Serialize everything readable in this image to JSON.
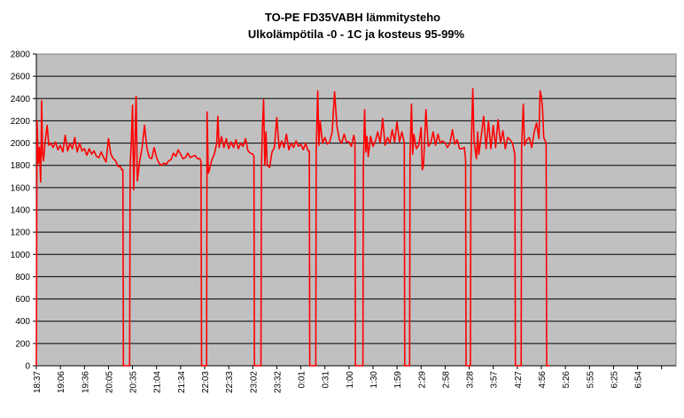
{
  "chart_data": {
    "type": "line",
    "title_lines": [
      "TO-PE FD35VABH lämmitysteho",
      "Ulkolämpötila  -0 - 1C ja kosteus 95-99%"
    ],
    "xlabel": "",
    "ylabel": "",
    "ylim": [
      0,
      2800
    ],
    "y_ticks": [
      "0",
      "200",
      "400",
      "600",
      "800",
      "1000",
      "1200",
      "1400",
      "1600",
      "1800",
      "2000",
      "2200",
      "2400",
      "2600",
      "2800"
    ],
    "x_tick_labels": [
      "18:37",
      "19:06",
      "19:36",
      "20:05",
      "20:35",
      "21:04",
      "21:34",
      "22:03",
      "22:33",
      "23:02",
      "23:32",
      "0:01",
      "0:31",
      "1:00",
      "1:30",
      "1:59",
      "2:29",
      "2:58",
      "3:28",
      "3:57",
      "4:27",
      "4:56",
      "5:26",
      "5:55",
      "6:25",
      "6:54"
    ],
    "x_extent_ticks": 26.6,
    "grid": true,
    "plot_background": "#c0c0c0",
    "line_color": "#ff0000",
    "series": [
      {
        "values": [
          [
            0.0,
            0
          ],
          [
            0.03,
            2200
          ],
          [
            0.08,
            1820
          ],
          [
            0.13,
            1960
          ],
          [
            0.18,
            1650
          ],
          [
            0.22,
            2380
          ],
          [
            0.26,
            1900
          ],
          [
            0.3,
            1840
          ],
          [
            0.36,
            2000
          ],
          [
            0.45,
            2160
          ],
          [
            0.52,
            1980
          ],
          [
            0.6,
            2000
          ],
          [
            0.7,
            1960
          ],
          [
            0.8,
            2010
          ],
          [
            0.9,
            1940
          ],
          [
            1.0,
            1980
          ],
          [
            1.1,
            1920
          ],
          [
            1.2,
            2070
          ],
          [
            1.3,
            1930
          ],
          [
            1.4,
            2000
          ],
          [
            1.5,
            1950
          ],
          [
            1.6,
            2050
          ],
          [
            1.7,
            1920
          ],
          [
            1.8,
            2000
          ],
          [
            1.9,
            1930
          ],
          [
            2.0,
            1950
          ],
          [
            2.1,
            1890
          ],
          [
            2.2,
            1950
          ],
          [
            2.3,
            1900
          ],
          [
            2.4,
            1930
          ],
          [
            2.5,
            1880
          ],
          [
            2.6,
            1870
          ],
          [
            2.7,
            1920
          ],
          [
            2.8,
            1870
          ],
          [
            2.9,
            1830
          ],
          [
            3.0,
            2040
          ],
          [
            3.1,
            1900
          ],
          [
            3.2,
            1860
          ],
          [
            3.3,
            1840
          ],
          [
            3.4,
            1790
          ],
          [
            3.5,
            1790
          ],
          [
            3.55,
            1760
          ],
          [
            3.6,
            1760
          ],
          [
            3.62,
            0
          ],
          [
            3.88,
            0
          ],
          [
            3.9,
            1800
          ],
          [
            3.95,
            2000
          ],
          [
            4.0,
            2340
          ],
          [
            4.05,
            1580
          ],
          [
            4.1,
            2000
          ],
          [
            4.15,
            2420
          ],
          [
            4.2,
            1660
          ],
          [
            4.3,
            1840
          ],
          [
            4.4,
            1960
          ],
          [
            4.5,
            2160
          ],
          [
            4.6,
            1950
          ],
          [
            4.7,
            1870
          ],
          [
            4.8,
            1860
          ],
          [
            4.9,
            1960
          ],
          [
            5.0,
            1870
          ],
          [
            5.1,
            1820
          ],
          [
            5.2,
            1800
          ],
          [
            5.3,
            1820
          ],
          [
            5.4,
            1810
          ],
          [
            5.5,
            1840
          ],
          [
            5.6,
            1850
          ],
          [
            5.7,
            1910
          ],
          [
            5.8,
            1880
          ],
          [
            5.9,
            1940
          ],
          [
            6.0,
            1900
          ],
          [
            6.1,
            1860
          ],
          [
            6.2,
            1870
          ],
          [
            6.3,
            1910
          ],
          [
            6.4,
            1870
          ],
          [
            6.5,
            1880
          ],
          [
            6.6,
            1890
          ],
          [
            6.7,
            1860
          ],
          [
            6.8,
            1860
          ],
          [
            6.85,
            1830
          ],
          [
            6.87,
            0
          ],
          [
            7.08,
            0
          ],
          [
            7.1,
            2280
          ],
          [
            7.15,
            1730
          ],
          [
            7.2,
            1760
          ],
          [
            7.3,
            1850
          ],
          [
            7.4,
            1900
          ],
          [
            7.5,
            2000
          ],
          [
            7.55,
            2240
          ],
          [
            7.6,
            1960
          ],
          [
            7.7,
            2060
          ],
          [
            7.8,
            1960
          ],
          [
            7.9,
            2040
          ],
          [
            8.0,
            1950
          ],
          [
            8.1,
            2010
          ],
          [
            8.2,
            1960
          ],
          [
            8.3,
            2030
          ],
          [
            8.4,
            1950
          ],
          [
            8.5,
            2000
          ],
          [
            8.6,
            1970
          ],
          [
            8.7,
            2040
          ],
          [
            8.8,
            1930
          ],
          [
            8.9,
            1910
          ],
          [
            9.0,
            1900
          ],
          [
            9.05,
            1880
          ],
          [
            9.07,
            0
          ],
          [
            9.34,
            0
          ],
          [
            9.36,
            1790
          ],
          [
            9.4,
            2120
          ],
          [
            9.45,
            2390
          ],
          [
            9.5,
            1800
          ],
          [
            9.55,
            2100
          ],
          [
            9.6,
            1800
          ],
          [
            9.7,
            1780
          ],
          [
            9.8,
            1920
          ],
          [
            9.9,
            1960
          ],
          [
            10.0,
            2230
          ],
          [
            10.1,
            1950
          ],
          [
            10.2,
            2020
          ],
          [
            10.3,
            1960
          ],
          [
            10.4,
            2080
          ],
          [
            10.5,
            1940
          ],
          [
            10.6,
            2000
          ],
          [
            10.7,
            1960
          ],
          [
            10.8,
            2020
          ],
          [
            10.9,
            1970
          ],
          [
            11.0,
            1990
          ],
          [
            11.1,
            1940
          ],
          [
            11.2,
            2000
          ],
          [
            11.3,
            1930
          ],
          [
            11.35,
            1930
          ],
          [
            11.37,
            0
          ],
          [
            11.62,
            0
          ],
          [
            11.64,
            1930
          ],
          [
            11.7,
            2470
          ],
          [
            11.75,
            1980
          ],
          [
            11.8,
            2200
          ],
          [
            11.9,
            2000
          ],
          [
            12.0,
            2050
          ],
          [
            12.1,
            1990
          ],
          [
            12.2,
            2010
          ],
          [
            12.3,
            2100
          ],
          [
            12.4,
            2460
          ],
          [
            12.5,
            2150
          ],
          [
            12.6,
            2030
          ],
          [
            12.7,
            2000
          ],
          [
            12.8,
            2080
          ],
          [
            12.9,
            2010
          ],
          [
            13.0,
            2010
          ],
          [
            13.1,
            1970
          ],
          [
            13.2,
            2070
          ],
          [
            13.25,
            2020
          ],
          [
            13.27,
            0
          ],
          [
            13.58,
            0
          ],
          [
            13.6,
            1790
          ],
          [
            13.65,
            2300
          ],
          [
            13.7,
            1920
          ],
          [
            13.75,
            2060
          ],
          [
            13.8,
            1880
          ],
          [
            13.9,
            2060
          ],
          [
            14.0,
            1970
          ],
          [
            14.1,
            2020
          ],
          [
            14.2,
            2100
          ],
          [
            14.3,
            2000
          ],
          [
            14.4,
            2220
          ],
          [
            14.5,
            1980
          ],
          [
            14.6,
            2050
          ],
          [
            14.7,
            2000
          ],
          [
            14.8,
            2120
          ],
          [
            14.9,
            2010
          ],
          [
            15.0,
            2190
          ],
          [
            15.1,
            2010
          ],
          [
            15.2,
            2100
          ],
          [
            15.3,
            2000
          ],
          [
            15.32,
            0
          ],
          [
            15.52,
            0
          ],
          [
            15.54,
            1890
          ],
          [
            15.6,
            2350
          ],
          [
            15.65,
            1900
          ],
          [
            15.7,
            2080
          ],
          [
            15.8,
            1950
          ],
          [
            15.9,
            1980
          ],
          [
            16.0,
            2140
          ],
          [
            16.05,
            1760
          ],
          [
            16.1,
            1800
          ],
          [
            16.2,
            2300
          ],
          [
            16.3,
            1970
          ],
          [
            16.4,
            2000
          ],
          [
            16.5,
            2100
          ],
          [
            16.6,
            1980
          ],
          [
            16.7,
            2080
          ],
          [
            16.8,
            2000
          ],
          [
            16.9,
            2020
          ],
          [
            17.0,
            2000
          ],
          [
            17.1,
            1960
          ],
          [
            17.2,
            2000
          ],
          [
            17.3,
            2120
          ],
          [
            17.4,
            1990
          ],
          [
            17.5,
            2030
          ],
          [
            17.6,
            1950
          ],
          [
            17.7,
            1950
          ],
          [
            17.8,
            1960
          ],
          [
            17.85,
            1850
          ],
          [
            17.87,
            0
          ],
          [
            18.05,
            0
          ],
          [
            18.07,
            1840
          ],
          [
            18.15,
            2490
          ],
          [
            18.2,
            2020
          ],
          [
            18.3,
            1860
          ],
          [
            18.35,
            2100
          ],
          [
            18.4,
            1900
          ],
          [
            18.5,
            2060
          ],
          [
            18.6,
            2240
          ],
          [
            18.7,
            1950
          ],
          [
            18.8,
            2200
          ],
          [
            18.9,
            1950
          ],
          [
            19.0,
            2160
          ],
          [
            19.1,
            1960
          ],
          [
            19.2,
            2210
          ],
          [
            19.3,
            2000
          ],
          [
            19.4,
            2110
          ],
          [
            19.5,
            1950
          ],
          [
            19.6,
            2050
          ],
          [
            19.7,
            2030
          ],
          [
            19.8,
            2000
          ],
          [
            19.9,
            1900
          ],
          [
            19.92,
            0
          ],
          [
            20.16,
            0
          ],
          [
            20.18,
            1960
          ],
          [
            20.25,
            2350
          ],
          [
            20.3,
            1980
          ],
          [
            20.4,
            2030
          ],
          [
            20.5,
            2050
          ],
          [
            20.6,
            1960
          ],
          [
            20.7,
            2100
          ],
          [
            20.8,
            2180
          ],
          [
            20.9,
            2040
          ],
          [
            20.95,
            2470
          ],
          [
            21.0,
            2420
          ],
          [
            21.05,
            2300
          ],
          [
            21.1,
            2050
          ],
          [
            21.2,
            2000
          ],
          [
            21.22,
            0
          ],
          [
            21.35,
            0
          ]
        ]
      }
    ]
  }
}
